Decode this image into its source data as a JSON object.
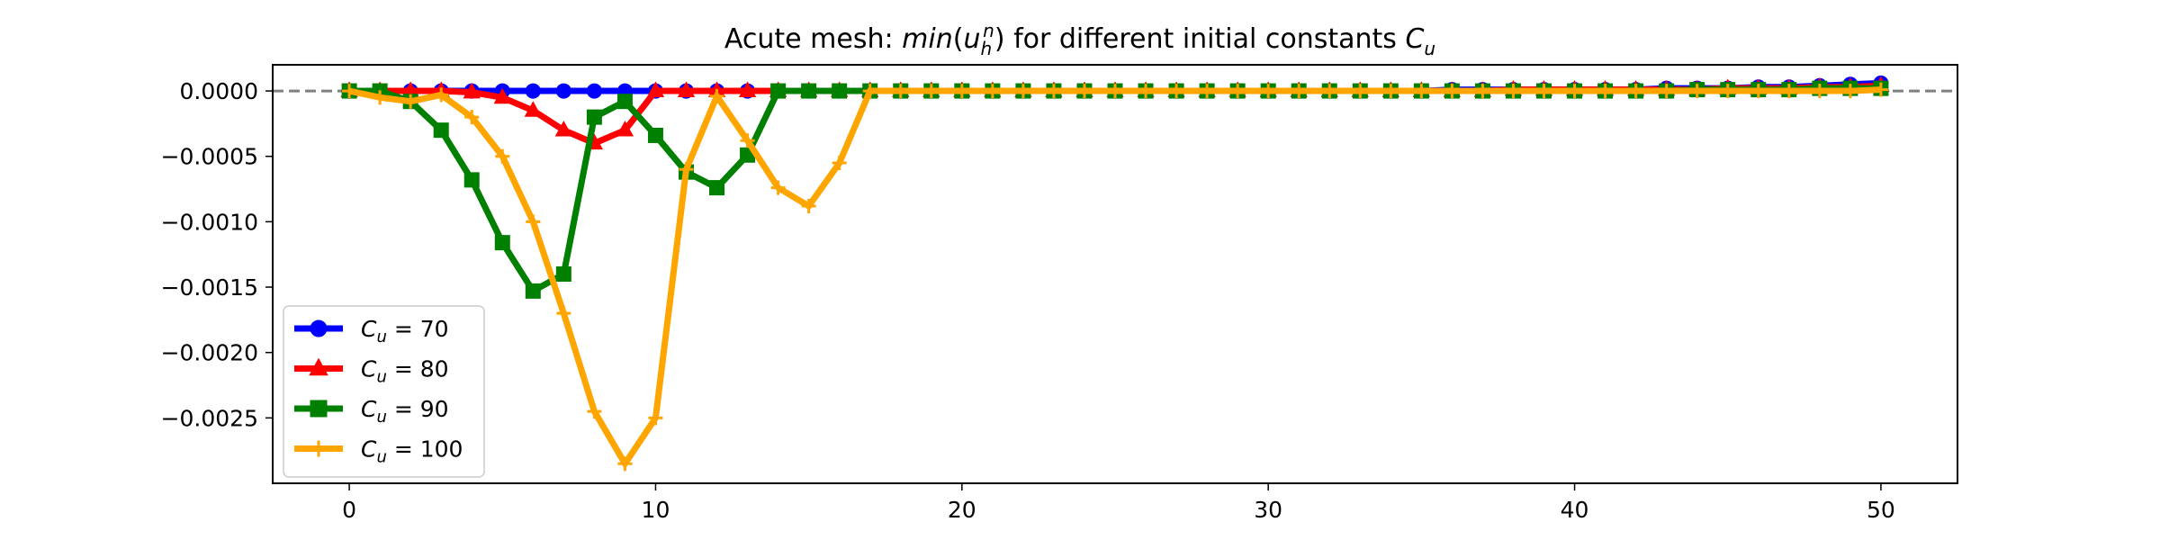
{
  "chart_data": {
    "type": "line",
    "title": {
      "prefix": "Acute mesh: ",
      "func": "min",
      "open_paren": "(",
      "var": "u",
      "sub": "h",
      "sup": "n",
      "close_paren": ")",
      "middle": " for different initial constants ",
      "const": "C",
      "const_sub": "u"
    },
    "xlabel": "",
    "ylabel": "",
    "xlim": [
      -2.5,
      52.5
    ],
    "ylim": [
      -0.003,
      0.0002
    ],
    "xticks": [
      0,
      10,
      20,
      30,
      40,
      50
    ],
    "yticks": [
      0.0,
      -0.0005,
      -0.001,
      -0.0015,
      -0.002,
      -0.0025
    ],
    "ytick_labels": [
      "0.0000",
      "−0.0005",
      "−0.0010",
      "−0.0015",
      "−0.0020",
      "−0.0025"
    ],
    "grid": false,
    "reference_line": {
      "y": 0,
      "style": "dashed",
      "color": "#808080"
    },
    "legend_position": "lower-left",
    "series": [
      {
        "name": "C_u = 70",
        "legend_symbol": "C",
        "legend_sub": "u",
        "legend_value": " = 70",
        "color": "#0000ff",
        "marker": "circle",
        "x": [
          0,
          1,
          2,
          3,
          4,
          5,
          6,
          7,
          8,
          9,
          10,
          11,
          12,
          13,
          14,
          15,
          16,
          17,
          18,
          19,
          20,
          21,
          22,
          23,
          24,
          25,
          26,
          27,
          28,
          29,
          30,
          31,
          32,
          33,
          34,
          35,
          36,
          37,
          38,
          39,
          40,
          41,
          42,
          43,
          44,
          45,
          46,
          47,
          48,
          49,
          50
        ],
        "y": [
          0,
          0,
          0,
          0,
          0,
          0,
          0,
          0,
          0,
          0,
          0,
          0,
          0,
          0,
          0,
          0,
          0,
          0,
          0,
          0,
          0,
          0,
          0,
          0,
          0,
          0,
          0,
          0,
          0,
          0,
          0,
          0,
          0,
          0,
          0,
          0,
          1e-05,
          1e-05,
          1e-05,
          1e-05,
          1e-05,
          1e-05,
          1e-05,
          2e-05,
          2e-05,
          2e-05,
          3e-05,
          3e-05,
          4e-05,
          5e-05,
          6e-05
        ]
      },
      {
        "name": "C_u = 80",
        "legend_symbol": "C",
        "legend_sub": "u",
        "legend_value": " = 80",
        "color": "#ff0000",
        "marker": "triangle",
        "x": [
          0,
          1,
          2,
          3,
          4,
          5,
          6,
          7,
          8,
          9,
          10,
          11,
          12,
          13,
          14,
          15,
          16,
          17,
          18,
          19,
          20,
          21,
          22,
          23,
          24,
          25,
          26,
          27,
          28,
          29,
          30,
          31,
          32,
          33,
          34,
          35,
          36,
          37,
          38,
          39,
          40,
          41,
          42,
          43,
          44,
          45,
          46,
          47,
          48,
          49,
          50
        ],
        "y": [
          0,
          0,
          0,
          0,
          -1e-05,
          -5e-05,
          -0.00015,
          -0.0003,
          -0.0004,
          -0.0003,
          0,
          0,
          0,
          0,
          0,
          0,
          0,
          0,
          0,
          0,
          0,
          0,
          0,
          0,
          0,
          0,
          0,
          0,
          0,
          0,
          0,
          0,
          0,
          0,
          0,
          0,
          0,
          0,
          1e-05,
          1e-05,
          1e-05,
          1e-05,
          1e-05,
          1e-05,
          1e-05,
          2e-05,
          2e-05,
          2e-05,
          3e-05,
          3e-05,
          4e-05
        ]
      },
      {
        "name": "C_u = 90",
        "legend_symbol": "C",
        "legend_sub": "u",
        "legend_value": " = 90",
        "color": "#008000",
        "marker": "square",
        "x": [
          0,
          1,
          2,
          3,
          4,
          5,
          6,
          7,
          8,
          9,
          10,
          11,
          12,
          13,
          14,
          15,
          16,
          17,
          18,
          19,
          20,
          21,
          22,
          23,
          24,
          25,
          26,
          27,
          28,
          29,
          30,
          31,
          32,
          33,
          34,
          35,
          36,
          37,
          38,
          39,
          40,
          41,
          42,
          43,
          44,
          45,
          46,
          47,
          48,
          49,
          50
        ],
        "y": [
          0,
          0,
          -8e-05,
          -0.0003,
          -0.00068,
          -0.00116,
          -0.00153,
          -0.0014,
          -0.0002,
          -8e-05,
          -0.00034,
          -0.00062,
          -0.00074,
          -0.00049,
          0,
          0,
          0,
          0,
          0,
          0,
          0,
          0,
          0,
          0,
          0,
          0,
          0,
          0,
          0,
          0,
          0,
          0,
          0,
          0,
          0,
          0,
          0,
          0,
          0,
          0,
          0,
          0,
          0,
          0,
          1e-05,
          1e-05,
          1e-05,
          1e-05,
          2e-05,
          2e-05,
          2e-05
        ]
      },
      {
        "name": "C_u = 100",
        "legend_symbol": "C",
        "legend_sub": "u",
        "legend_value": " = 100",
        "color": "#ffa500",
        "marker": "plus",
        "x": [
          0,
          1,
          2,
          3,
          4,
          5,
          6,
          7,
          8,
          9,
          10,
          11,
          12,
          13,
          14,
          15,
          16,
          17,
          18,
          19,
          20,
          21,
          22,
          23,
          24,
          25,
          26,
          27,
          28,
          29,
          30,
          31,
          32,
          33,
          34,
          35,
          36,
          37,
          38,
          39,
          40,
          41,
          42,
          43,
          44,
          45,
          46,
          47,
          48,
          49,
          50
        ],
        "y": [
          0,
          -5e-05,
          -8e-05,
          -3e-05,
          -0.0002,
          -0.0005,
          -0.001,
          -0.0017,
          -0.00245,
          -0.00285,
          -0.0025,
          -0.0006,
          -4e-05,
          -0.00038,
          -0.00074,
          -0.00088,
          -0.00055,
          0,
          0,
          0,
          0,
          0,
          0,
          0,
          0,
          0,
          0,
          0,
          0,
          0,
          0,
          0,
          0,
          0,
          0,
          0,
          0,
          0,
          0,
          0,
          0,
          0,
          0,
          0,
          0,
          0,
          0,
          0,
          0,
          0,
          1e-05
        ]
      }
    ]
  }
}
